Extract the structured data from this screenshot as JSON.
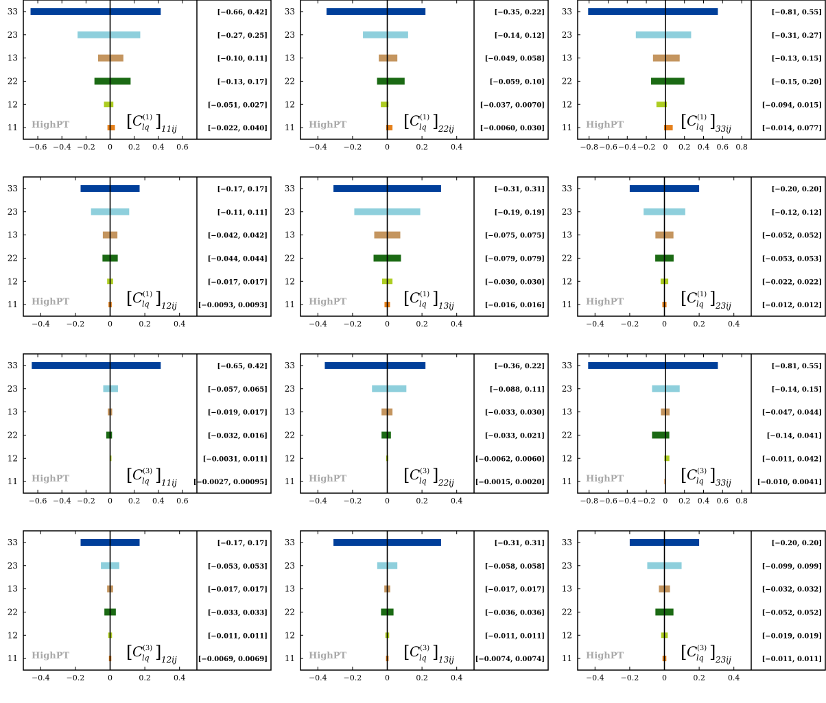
{
  "chart_data": {
    "type": "bar",
    "layout": "4x3 grid of horizontal interval-bar panels, each with a right-hand column of printed interval labels",
    "y_categories": [
      "33",
      "23",
      "13",
      "22",
      "12",
      "11"
    ],
    "category_colors": {
      "33": "#003f9a",
      "23": "#8ecfdc",
      "13": "#c4955f",
      "22": "#1b6a14",
      "12": "#adcd22",
      "11": "#e5801b"
    },
    "watermark": "HighPT",
    "panels": [
      {
        "id": "p1",
        "label": {
          "op": "lq",
          "sup": "(1)",
          "idx": "11ij"
        },
        "xlim": [
          -0.72,
          0.72
        ],
        "xticks": [
          -0.6,
          -0.4,
          -0.2,
          0,
          0.2,
          0.4,
          0.6
        ],
        "xtick_labels": [
          "−0.6",
          "−0.4",
          "−0.2",
          "0",
          "0.2",
          "0.4",
          "0.6"
        ],
        "intervals": [
          [
            -0.66,
            0.42
          ],
          [
            -0.27,
            0.25
          ],
          [
            -0.1,
            0.11
          ],
          [
            -0.13,
            0.17
          ],
          [
            -0.051,
            0.027
          ],
          [
            -0.022,
            0.04
          ]
        ],
        "interval_labels": [
          "[−0.66, 0.42]",
          "[−0.27, 0.25]",
          "[−0.10, 0.11]",
          "[−0.13, 0.17]",
          "[−0.051, 0.027]",
          "[−0.022, 0.040]"
        ]
      },
      {
        "id": "p2",
        "label": {
          "op": "lq",
          "sup": "(1)",
          "idx": "22ij"
        },
        "xlim": [
          -0.5,
          0.5
        ],
        "xticks": [
          -0.4,
          -0.2,
          0,
          0.2,
          0.4
        ],
        "xtick_labels": [
          "−0.4",
          "−0.2",
          "0",
          "0.2",
          "0.4"
        ],
        "intervals": [
          [
            -0.35,
            0.22
          ],
          [
            -0.14,
            0.12
          ],
          [
            -0.049,
            0.058
          ],
          [
            -0.059,
            0.1
          ],
          [
            -0.037,
            0.007
          ],
          [
            -0.006,
            0.03
          ]
        ],
        "interval_labels": [
          "[−0.35, 0.22]",
          "[−0.14, 0.12]",
          "[−0.049, 0.058]",
          "[−0.059, 0.10]",
          "[−0.037, 0.0070]",
          "[−0.0060, 0.030]"
        ]
      },
      {
        "id": "p3",
        "label": {
          "op": "lq",
          "sup": "(1)",
          "idx": "33ij"
        },
        "xlim": [
          -0.92,
          0.9
        ],
        "xticks": [
          -0.8,
          -0.6,
          -0.4,
          -0.2,
          0,
          0.2,
          0.4,
          0.6,
          0.8
        ],
        "xtick_labels": [
          "−0.8",
          "−0.6",
          "−0.4",
          "−0.2",
          "0",
          "0.2",
          "0.4",
          "0.6",
          "0.8"
        ],
        "intervals": [
          [
            -0.81,
            0.55
          ],
          [
            -0.31,
            0.27
          ],
          [
            -0.13,
            0.15
          ],
          [
            -0.15,
            0.2
          ],
          [
            -0.094,
            0.015
          ],
          [
            -0.014,
            0.077
          ]
        ],
        "interval_labels": [
          "[−0.81, 0.55]",
          "[−0.31, 0.27]",
          "[−0.13, 0.15]",
          "[−0.15, 0.20]",
          "[−0.094, 0.015]",
          "[−0.014, 0.077]"
        ]
      },
      {
        "id": "p4",
        "label": {
          "op": "lq",
          "sup": "(1)",
          "idx": "12ij"
        },
        "xlim": [
          -0.5,
          0.5
        ],
        "xticks": [
          -0.4,
          -0.2,
          0,
          0.2,
          0.4
        ],
        "xtick_labels": [
          "−0.4",
          "−0.2",
          "0",
          "0.2",
          "0.4"
        ],
        "intervals": [
          [
            -0.17,
            0.17
          ],
          [
            -0.11,
            0.11
          ],
          [
            -0.042,
            0.042
          ],
          [
            -0.044,
            0.044
          ],
          [
            -0.017,
            0.017
          ],
          [
            -0.0093,
            0.0093
          ]
        ],
        "interval_labels": [
          "[−0.17, 0.17]",
          "[−0.11, 0.11]",
          "[−0.042, 0.042]",
          "[−0.044, 0.044]",
          "[−0.017, 0.017]",
          "[−0.0093, 0.0093]"
        ]
      },
      {
        "id": "p5",
        "label": {
          "op": "lq",
          "sup": "(1)",
          "idx": "13ij"
        },
        "xlim": [
          -0.5,
          0.5
        ],
        "xticks": [
          -0.4,
          -0.2,
          0,
          0.2,
          0.4
        ],
        "xtick_labels": [
          "−0.4",
          "−0.2",
          "0",
          "0.2",
          "0.4"
        ],
        "intervals": [
          [
            -0.31,
            0.31
          ],
          [
            -0.19,
            0.19
          ],
          [
            -0.075,
            0.075
          ],
          [
            -0.079,
            0.079
          ],
          [
            -0.03,
            0.03
          ],
          [
            -0.016,
            0.016
          ]
        ],
        "interval_labels": [
          "[−0.31, 0.31]",
          "[−0.19, 0.19]",
          "[−0.075, 0.075]",
          "[−0.079, 0.079]",
          "[−0.030, 0.030]",
          "[−0.016, 0.016]"
        ]
      },
      {
        "id": "p6",
        "label": {
          "op": "lq",
          "sup": "(1)",
          "idx": "23ij"
        },
        "xlim": [
          -0.5,
          0.5
        ],
        "xticks": [
          -0.4,
          -0.2,
          0,
          0.2,
          0.4
        ],
        "xtick_labels": [
          "−0.4",
          "−0.2",
          "0",
          "0.2",
          "0.4"
        ],
        "intervals": [
          [
            -0.2,
            0.2
          ],
          [
            -0.12,
            0.12
          ],
          [
            -0.052,
            0.052
          ],
          [
            -0.053,
            0.053
          ],
          [
            -0.022,
            0.022
          ],
          [
            -0.012,
            0.012
          ]
        ],
        "interval_labels": [
          "[−0.20, 0.20]",
          "[−0.12, 0.12]",
          "[−0.052, 0.052]",
          "[−0.053, 0.053]",
          "[−0.022, 0.022]",
          "[−0.012, 0.012]"
        ]
      },
      {
        "id": "p7",
        "label": {
          "op": "lq",
          "sup": "(3)",
          "idx": "11ij"
        },
        "xlim": [
          -0.72,
          0.72
        ],
        "xticks": [
          -0.6,
          -0.4,
          -0.2,
          0,
          0.2,
          0.4,
          0.6
        ],
        "xtick_labels": [
          "−0.6",
          "−0.4",
          "−0.2",
          "0",
          "0.2",
          "0.4",
          "0.6"
        ],
        "intervals": [
          [
            -0.65,
            0.42
          ],
          [
            -0.057,
            0.065
          ],
          [
            -0.019,
            0.017
          ],
          [
            -0.032,
            0.016
          ],
          [
            -0.0031,
            0.011
          ],
          [
            -0.0027,
            0.00095
          ]
        ],
        "interval_labels": [
          "[−0.65, 0.42]",
          "[−0.057, 0.065]",
          "[−0.019, 0.017]",
          "[−0.032, 0.016]",
          "[−0.0031, 0.011]",
          "[−0.0027, 0.00095]"
        ]
      },
      {
        "id": "p8",
        "label": {
          "op": "lq",
          "sup": "(3)",
          "idx": "22ij"
        },
        "xlim": [
          -0.5,
          0.5
        ],
        "xticks": [
          -0.4,
          -0.2,
          0,
          0.2,
          0.4
        ],
        "xtick_labels": [
          "−0.4",
          "−0.2",
          "0",
          "0.2",
          "0.4"
        ],
        "intervals": [
          [
            -0.36,
            0.22
          ],
          [
            -0.088,
            0.11
          ],
          [
            -0.033,
            0.03
          ],
          [
            -0.033,
            0.021
          ],
          [
            -0.0062,
            0.006
          ],
          [
            -0.0015,
            0.002
          ]
        ],
        "interval_labels": [
          "[−0.36, 0.22]",
          "[−0.088, 0.11]",
          "[−0.033, 0.030]",
          "[−0.033, 0.021]",
          "[−0.0062, 0.0060]",
          "[−0.0015, 0.0020]"
        ]
      },
      {
        "id": "p9",
        "label": {
          "op": "lq",
          "sup": "(3)",
          "idx": "33ij"
        },
        "xlim": [
          -0.92,
          0.9
        ],
        "xticks": [
          -0.8,
          -0.6,
          -0.4,
          -0.2,
          0,
          0.2,
          0.4,
          0.6,
          0.8
        ],
        "xtick_labels": [
          "−0.8",
          "−0.6",
          "−0.4",
          "−0.2",
          "0",
          "0.2",
          "0.4",
          "0.6",
          "0.8"
        ],
        "intervals": [
          [
            -0.81,
            0.55
          ],
          [
            -0.14,
            0.15
          ],
          [
            -0.047,
            0.044
          ],
          [
            -0.14,
            0.041
          ],
          [
            -0.011,
            0.042
          ],
          [
            -0.01,
            0.0041
          ]
        ],
        "interval_labels": [
          "[−0.81, 0.55]",
          "[−0.14, 0.15]",
          "[−0.047, 0.044]",
          "[−0.14, 0.041]",
          "[−0.011, 0.042]",
          "[−0.010, 0.0041]"
        ]
      },
      {
        "id": "p10",
        "label": {
          "op": "lq",
          "sup": "(3)",
          "idx": "12ij"
        },
        "xlim": [
          -0.5,
          0.5
        ],
        "xticks": [
          -0.4,
          -0.2,
          0,
          0.2,
          0.4
        ],
        "xtick_labels": [
          "−0.4",
          "−0.2",
          "0",
          "0.2",
          "0.4"
        ],
        "intervals": [
          [
            -0.17,
            0.17
          ],
          [
            -0.053,
            0.053
          ],
          [
            -0.017,
            0.017
          ],
          [
            -0.033,
            0.033
          ],
          [
            -0.011,
            0.011
          ],
          [
            -0.0069,
            0.0069
          ]
        ],
        "interval_labels": [
          "[−0.17, 0.17]",
          "[−0.053, 0.053]",
          "[−0.017, 0.017]",
          "[−0.033, 0.033]",
          "[−0.011, 0.011]",
          "[−0.0069, 0.0069]"
        ]
      },
      {
        "id": "p11",
        "label": {
          "op": "lq",
          "sup": "(3)",
          "idx": "13ij"
        },
        "xlim": [
          -0.5,
          0.5
        ],
        "xticks": [
          -0.4,
          -0.2,
          0,
          0.2,
          0.4
        ],
        "xtick_labels": [
          "−0.4",
          "−0.2",
          "0",
          "0.2",
          "0.4"
        ],
        "intervals": [
          [
            -0.31,
            0.31
          ],
          [
            -0.058,
            0.058
          ],
          [
            -0.017,
            0.017
          ],
          [
            -0.036,
            0.036
          ],
          [
            -0.011,
            0.011
          ],
          [
            -0.0074,
            0.0074
          ]
        ],
        "interval_labels": [
          "[−0.31, 0.31]",
          "[−0.058, 0.058]",
          "[−0.017, 0.017]",
          "[−0.036, 0.036]",
          "[−0.011, 0.011]",
          "[−0.0074, 0.0074]"
        ]
      },
      {
        "id": "p12",
        "label": {
          "op": "lq",
          "sup": "(3)",
          "idx": "23ij"
        },
        "xlim": [
          -0.5,
          0.5
        ],
        "xticks": [
          -0.4,
          -0.2,
          0,
          0.2,
          0.4
        ],
        "xtick_labels": [
          "−0.4",
          "−0.2",
          "0",
          "0.2",
          "0.4"
        ],
        "intervals": [
          [
            -0.2,
            0.2
          ],
          [
            -0.099,
            0.099
          ],
          [
            -0.032,
            0.032
          ],
          [
            -0.052,
            0.052
          ],
          [
            -0.019,
            0.019
          ],
          [
            -0.011,
            0.011
          ]
        ],
        "interval_labels": [
          "[−0.20, 0.20]",
          "[−0.099, 0.099]",
          "[−0.032, 0.032]",
          "[−0.052, 0.052]",
          "[−0.019, 0.019]",
          "[−0.011, 0.011]"
        ]
      }
    ]
  }
}
